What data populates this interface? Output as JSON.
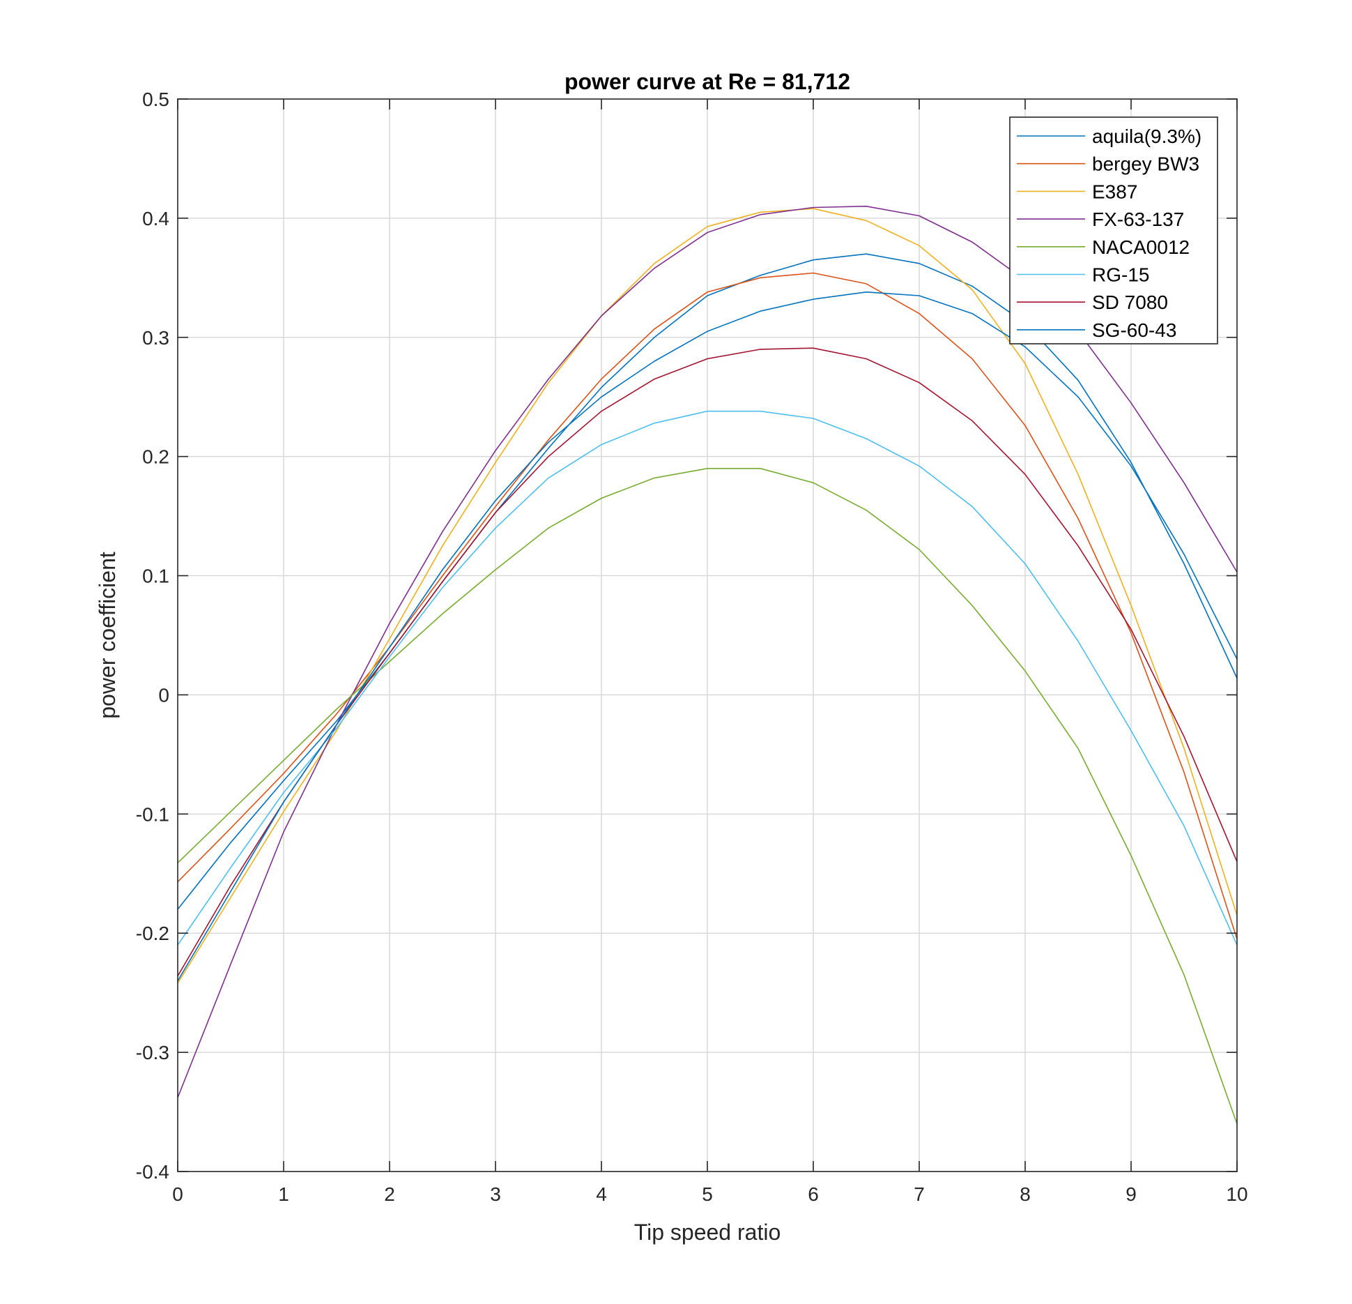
{
  "chart_data": {
    "type": "line",
    "title": "power curve at Re = 81,712",
    "xlabel": "Tip speed ratio",
    "ylabel": "power coefficient",
    "xlim": [
      0,
      10
    ],
    "ylim": [
      -0.4,
      0.5
    ],
    "xticks": [
      0,
      1,
      2,
      3,
      4,
      5,
      6,
      7,
      8,
      9,
      10
    ],
    "xtick_labels": [
      "0",
      "1",
      "2",
      "3",
      "4",
      "5",
      "6",
      "7",
      "8",
      "9",
      "10"
    ],
    "yticks": [
      -0.4,
      -0.3,
      -0.2,
      -0.1,
      0,
      0.1,
      0.2,
      0.3,
      0.4,
      0.5
    ],
    "ytick_labels": [
      "-0.4",
      "-0.3",
      "-0.2",
      "-0.1",
      "0",
      "0.1",
      "0.2",
      "0.3",
      "0.4",
      "0.5"
    ],
    "grid": true,
    "legend_position": "top-right",
    "x": [
      0,
      0.5,
      1,
      1.5,
      2,
      2.5,
      3,
      3.5,
      4,
      4.5,
      5,
      5.5,
      6,
      6.5,
      7,
      7.5,
      8,
      8.5,
      9,
      9.5,
      10
    ],
    "series": [
      {
        "name": "aquila(9.3%)",
        "color": "#0072BD",
        "values": [
          -0.18,
          -0.124,
          -0.072,
          -0.022,
          0.035,
          0.095,
          0.153,
          0.207,
          0.258,
          0.3,
          0.335,
          0.352,
          0.365,
          0.37,
          0.362,
          0.343,
          0.312,
          0.264,
          0.195,
          0.11,
          0.014
        ]
      },
      {
        "name": "bergey BW3",
        "color": "#D95319",
        "values": [
          -0.157,
          -0.112,
          -0.066,
          -0.016,
          0.04,
          0.1,
          0.158,
          0.214,
          0.265,
          0.307,
          0.338,
          0.35,
          0.354,
          0.345,
          0.32,
          0.282,
          0.226,
          0.148,
          0.052,
          -0.065,
          -0.205
        ]
      },
      {
        "name": "E387",
        "color": "#EDB120",
        "values": [
          -0.242,
          -0.17,
          -0.098,
          -0.03,
          0.047,
          0.125,
          0.195,
          0.262,
          0.318,
          0.362,
          0.393,
          0.405,
          0.408,
          0.398,
          0.377,
          0.34,
          0.278,
          0.185,
          0.075,
          -0.045,
          -0.185
        ]
      },
      {
        "name": "FX-63-137",
        "color": "#7E2F8E",
        "values": [
          -0.338,
          -0.226,
          -0.115,
          -0.025,
          0.06,
          0.137,
          0.205,
          0.265,
          0.318,
          0.358,
          0.388,
          0.403,
          0.409,
          0.41,
          0.402,
          0.38,
          0.348,
          0.305,
          0.245,
          0.178,
          0.103
        ]
      },
      {
        "name": "NACA0012",
        "color": "#77AC30",
        "values": [
          -0.141,
          -0.098,
          -0.055,
          -0.012,
          0.028,
          0.068,
          0.105,
          0.14,
          0.165,
          0.182,
          0.19,
          0.19,
          0.178,
          0.155,
          0.122,
          0.075,
          0.02,
          -0.045,
          -0.135,
          -0.235,
          -0.36
        ]
      },
      {
        "name": "RG-15",
        "color": "#4DBEEE",
        "values": [
          -0.21,
          -0.145,
          -0.082,
          -0.028,
          0.032,
          0.09,
          0.14,
          0.182,
          0.21,
          0.228,
          0.238,
          0.238,
          0.232,
          0.215,
          0.192,
          0.158,
          0.11,
          0.045,
          -0.03,
          -0.11,
          -0.21
        ]
      },
      {
        "name": "SD 7080",
        "color": "#A2142F",
        "values": [
          -0.236,
          -0.16,
          -0.09,
          -0.025,
          0.035,
          0.095,
          0.153,
          0.2,
          0.238,
          0.265,
          0.282,
          0.29,
          0.291,
          0.282,
          0.262,
          0.23,
          0.185,
          0.125,
          0.055,
          -0.035,
          -0.14
        ]
      },
      {
        "name": "SG-60-43",
        "color": "#0072BD",
        "values": [
          -0.24,
          -0.165,
          -0.09,
          -0.025,
          0.04,
          0.105,
          0.163,
          0.212,
          0.25,
          0.28,
          0.305,
          0.322,
          0.332,
          0.338,
          0.335,
          0.32,
          0.292,
          0.25,
          0.192,
          0.118,
          0.03
        ]
      }
    ]
  }
}
